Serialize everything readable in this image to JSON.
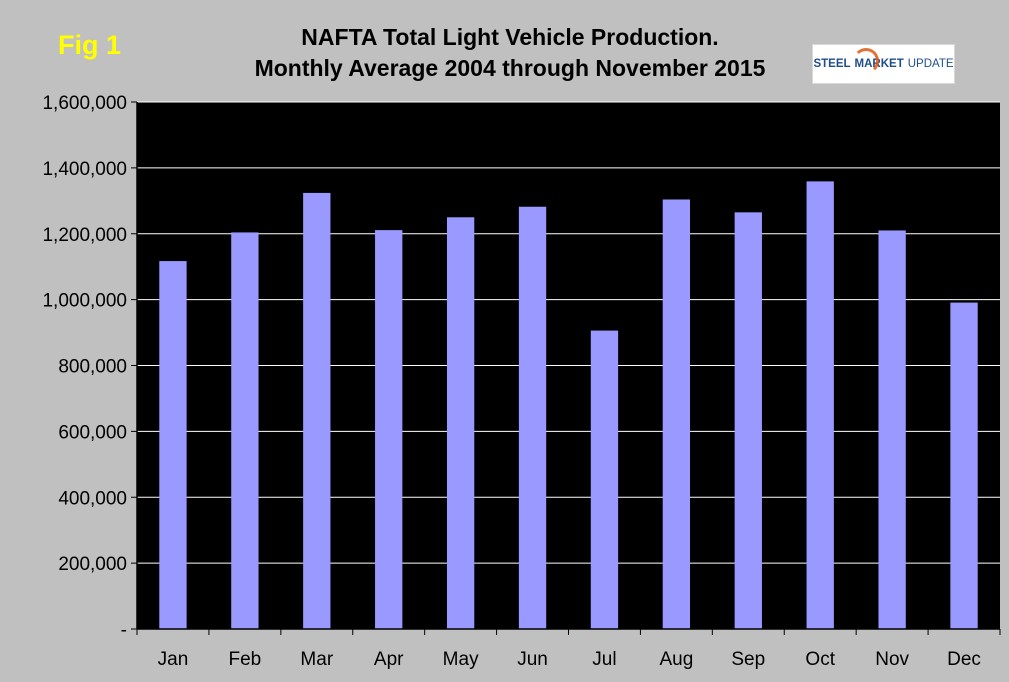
{
  "fig_label": "Fig 1",
  "title_line1": "NAFTA Total Light Vehicle Production.",
  "title_line2": "Monthly Average 2004 through November 2015",
  "logo": {
    "part1": "STEEL",
    "part2": "MARKET",
    "part3": "UPDATE",
    "brand_blue": "#1f4e8c",
    "brand_orange": "#e05a12"
  },
  "colors": {
    "page_background": "#c0c0c0",
    "plot_background": "#000000",
    "bar": "#9999ff",
    "gridline": "#ffffff",
    "fig_label": "#ffff00"
  },
  "chart_data": {
    "type": "bar",
    "categories": [
      "Jan",
      "Feb",
      "Mar",
      "Apr",
      "May",
      "Jun",
      "Jul",
      "Aug",
      "Sep",
      "Oct",
      "Nov",
      "Dec"
    ],
    "values": [
      1117000,
      1204000,
      1324000,
      1211000,
      1250000,
      1282000,
      906000,
      1304000,
      1265000,
      1359000,
      1210000,
      991000
    ],
    "ylim": [
      0,
      1600000
    ],
    "yticks": [
      0,
      200000,
      400000,
      600000,
      800000,
      1000000,
      1200000,
      1400000,
      1600000
    ],
    "ytick_labels": [
      "-",
      "200,000",
      "400,000",
      "600,000",
      "800,000",
      "1,000,000",
      "1,200,000",
      "1,400,000",
      "1,600,000"
    ],
    "grid": true,
    "legend": false
  }
}
